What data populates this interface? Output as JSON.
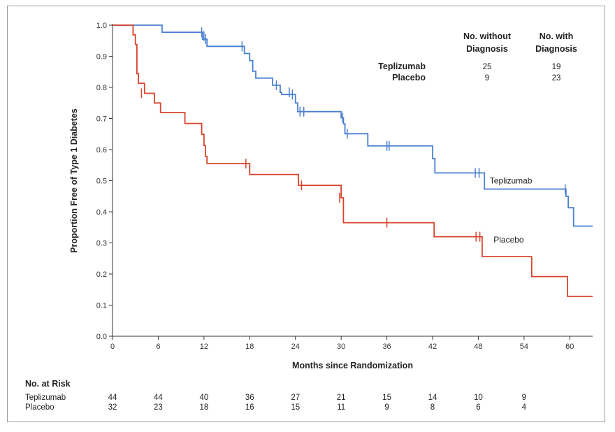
{
  "chart_data": {
    "type": "line",
    "subtype": "kaplan-meier",
    "xlabel": "Months since Randomization",
    "ylabel": "Proportion Free of Type 1 Diabetes",
    "xlim": [
      0,
      63
    ],
    "ylim": [
      0,
      1.0
    ],
    "x_ticks": [
      0,
      6,
      12,
      18,
      24,
      30,
      36,
      42,
      48,
      54,
      60
    ],
    "y_ticks": [
      "0.0",
      "0.1",
      "0.2",
      "0.3",
      "0.4",
      "0.5",
      "0.6",
      "0.7",
      "0.8",
      "0.9",
      "1.0"
    ],
    "series": [
      {
        "name": "Teplizumab",
        "color": "#4a7fd0",
        "label_at": [
          49.5,
          0.5
        ],
        "steps": [
          [
            0,
            1.0
          ],
          [
            6.5,
            1.0
          ],
          [
            6.5,
            0.977
          ],
          [
            11.8,
            0.977
          ],
          [
            11.8,
            0.955
          ],
          [
            12.4,
            0.955
          ],
          [
            12.4,
            0.932
          ],
          [
            17.3,
            0.932
          ],
          [
            17.3,
            0.909
          ],
          [
            18,
            0.909
          ],
          [
            18,
            0.886
          ],
          [
            18.4,
            0.886
          ],
          [
            18.4,
            0.852
          ],
          [
            18.8,
            0.852
          ],
          [
            18.8,
            0.83
          ],
          [
            21,
            0.83
          ],
          [
            21,
            0.807
          ],
          [
            22,
            0.807
          ],
          [
            22,
            0.784
          ],
          [
            22.2,
            0.784
          ],
          [
            22.2,
            0.777
          ],
          [
            24,
            0.777
          ],
          [
            24,
            0.75
          ],
          [
            24.3,
            0.75
          ],
          [
            24.3,
            0.722
          ],
          [
            30,
            0.722
          ],
          [
            30,
            0.702
          ],
          [
            30.3,
            0.702
          ],
          [
            30.3,
            0.683
          ],
          [
            30.5,
            0.683
          ],
          [
            30.5,
            0.651
          ],
          [
            33.5,
            0.651
          ],
          [
            33.5,
            0.612
          ],
          [
            42,
            0.612
          ],
          [
            42,
            0.571
          ],
          [
            42.3,
            0.571
          ],
          [
            42.3,
            0.525
          ],
          [
            48.8,
            0.525
          ],
          [
            48.8,
            0.473
          ],
          [
            59.5,
            0.473
          ],
          [
            59.5,
            0.45
          ],
          [
            59.8,
            0.45
          ],
          [
            59.8,
            0.413
          ],
          [
            60.5,
            0.413
          ],
          [
            60.5,
            0.354
          ],
          [
            63,
            0.354
          ]
        ],
        "censor": [
          [
            11.7,
            0.977
          ],
          [
            12,
            0.965
          ],
          [
            12.2,
            0.955
          ],
          [
            17,
            0.932
          ],
          [
            21.5,
            0.807
          ],
          [
            23.2,
            0.784
          ],
          [
            23.6,
            0.777
          ],
          [
            24.6,
            0.722
          ],
          [
            25.1,
            0.722
          ],
          [
            30.2,
            0.702
          ],
          [
            30.8,
            0.651
          ],
          [
            36,
            0.612
          ],
          [
            36.3,
            0.612
          ],
          [
            47.6,
            0.525
          ],
          [
            48.1,
            0.525
          ],
          [
            59.4,
            0.473
          ]
        ]
      },
      {
        "name": "Placebo",
        "color": "#d9442c",
        "label_at": [
          50,
          0.31
        ],
        "steps": [
          [
            0,
            1.0
          ],
          [
            2.7,
            1.0
          ],
          [
            2.7,
            0.969
          ],
          [
            3,
            0.969
          ],
          [
            3,
            0.938
          ],
          [
            3.2,
            0.938
          ],
          [
            3.2,
            0.844
          ],
          [
            3.4,
            0.844
          ],
          [
            3.4,
            0.813
          ],
          [
            4.2,
            0.813
          ],
          [
            4.2,
            0.781
          ],
          [
            5.5,
            0.781
          ],
          [
            5.5,
            0.75
          ],
          [
            6.3,
            0.75
          ],
          [
            6.3,
            0.719
          ],
          [
            9.5,
            0.719
          ],
          [
            9.5,
            0.684
          ],
          [
            11.7,
            0.684
          ],
          [
            11.7,
            0.649
          ],
          [
            12,
            0.649
          ],
          [
            12,
            0.613
          ],
          [
            12.2,
            0.613
          ],
          [
            12.2,
            0.578
          ],
          [
            12.4,
            0.578
          ],
          [
            12.4,
            0.555
          ],
          [
            18,
            0.555
          ],
          [
            18,
            0.52
          ],
          [
            24.4,
            0.52
          ],
          [
            24.4,
            0.485
          ],
          [
            30,
            0.485
          ],
          [
            30,
            0.445
          ],
          [
            30.3,
            0.445
          ],
          [
            30.3,
            0.365
          ],
          [
            42.2,
            0.365
          ],
          [
            42.2,
            0.32
          ],
          [
            48.5,
            0.32
          ],
          [
            48.5,
            0.256
          ],
          [
            55,
            0.256
          ],
          [
            55,
            0.192
          ],
          [
            59.7,
            0.192
          ],
          [
            59.7,
            0.128
          ],
          [
            63,
            0.128
          ]
        ],
        "censor": [
          [
            3.8,
            0.781
          ],
          [
            17.5,
            0.555
          ],
          [
            24.8,
            0.485
          ],
          [
            29.8,
            0.445
          ],
          [
            36,
            0.365
          ],
          [
            47.7,
            0.32
          ],
          [
            48.2,
            0.32
          ]
        ]
      }
    ],
    "summary_table": {
      "headers": [
        [
          "No. without",
          "Diagnosis"
        ],
        [
          "No. with",
          "Diagnosis"
        ]
      ],
      "rows": [
        {
          "label": "Teplizumab",
          "without": "25",
          "with": "19"
        },
        {
          "label": "Placebo",
          "without": "9",
          "with": "23"
        }
      ]
    },
    "risk_table": {
      "title": "No. at Risk",
      "rows": [
        {
          "label": "Teplizumab",
          "values": [
            "44",
            "44",
            "40",
            "36",
            "27",
            "21",
            "15",
            "14",
            "10",
            "9"
          ]
        },
        {
          "label": "Placebo",
          "values": [
            "32",
            "23",
            "18",
            "16",
            "15",
            "11",
            "9",
            "8",
            "6",
            "4"
          ]
        }
      ]
    }
  }
}
